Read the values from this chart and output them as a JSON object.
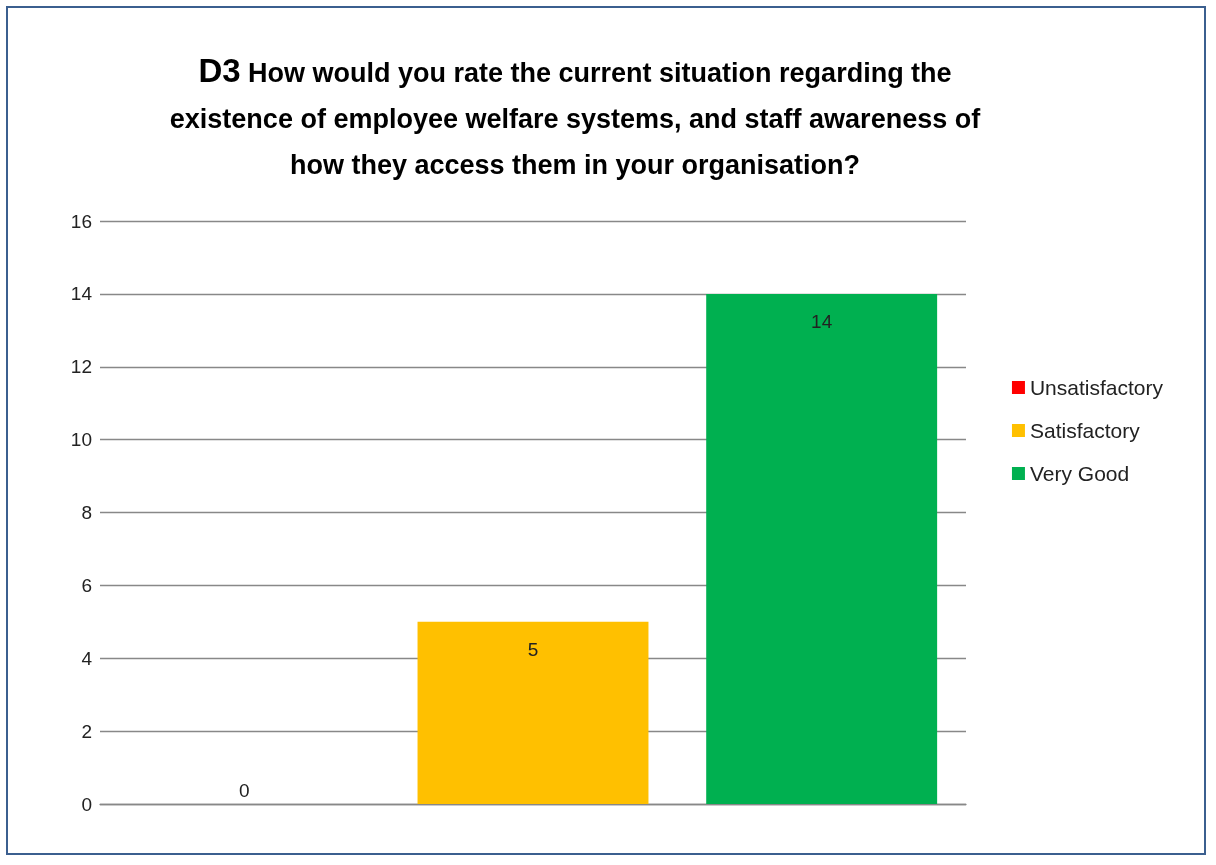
{
  "chart_data": {
    "type": "bar",
    "title": "D3 How would you rate the current situation regarding  the existence of employee welfare systems, and staff awareness of how they access them in your organisation?",
    "categories": [
      null,
      null,
      null
    ],
    "series": [
      {
        "name": "Unsatisfactory",
        "color": "#ff0000",
        "values": [
          0,
          null,
          null
        ]
      },
      {
        "name": "Satisfactory",
        "color": "#ffc000",
        "values": [
          null,
          5,
          null
        ]
      },
      {
        "name": "Very Good",
        "color": "#00b050",
        "values": [
          null,
          null,
          14
        ]
      }
    ],
    "ylim": [
      0,
      16
    ],
    "yticks": [
      0,
      2,
      4,
      6,
      8,
      10,
      12,
      14,
      16
    ],
    "grid": "y",
    "legend": "right",
    "data_labels": true
  }
}
